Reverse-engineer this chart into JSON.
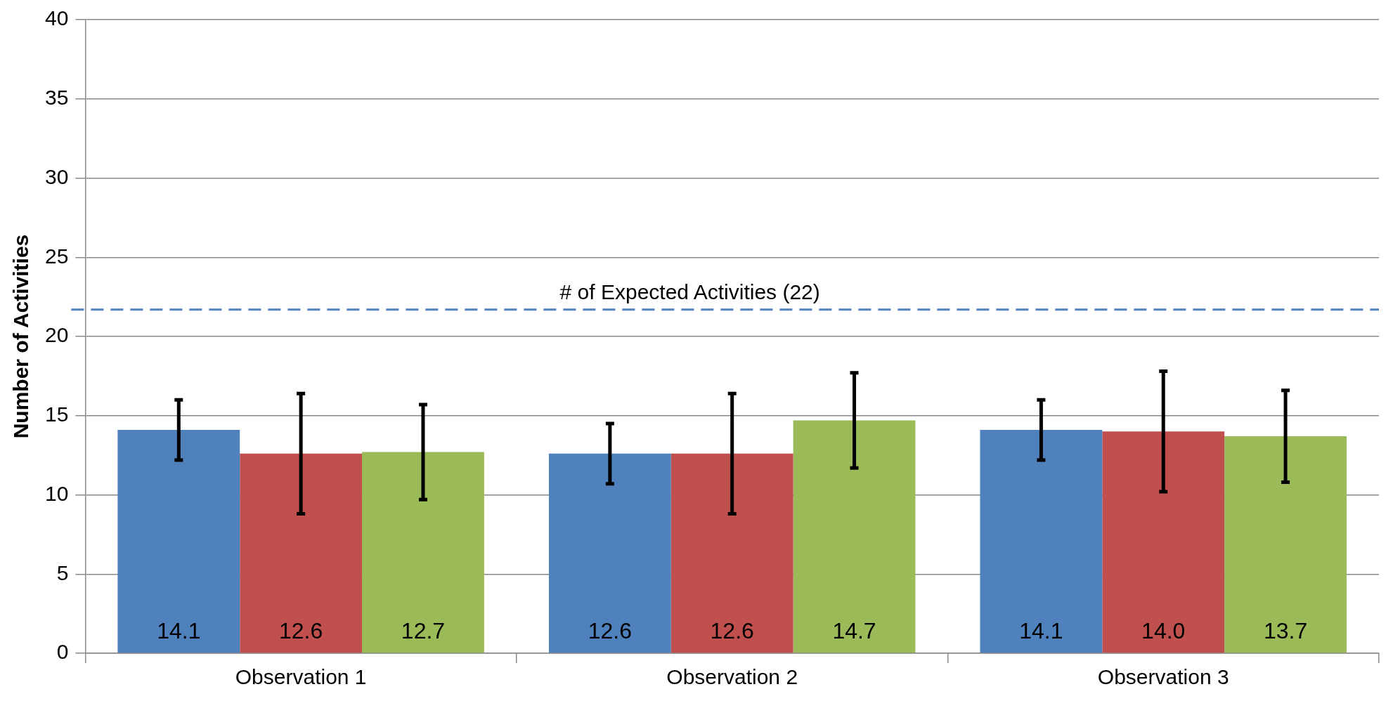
{
  "chart_data": {
    "type": "bar",
    "ylabel": "Number of Activities",
    "categories": [
      "Observation 1",
      "Observation 2",
      "Observation 3"
    ],
    "series": [
      {
        "color": "#4f81bd",
        "values": [
          14.1,
          12.6,
          14.1
        ],
        "errors": [
          1.9,
          1.9,
          1.9
        ],
        "value_labels": [
          "14.1",
          "12.6",
          "14.1"
        ]
      },
      {
        "color": "#c0504d",
        "values": [
          12.6,
          12.6,
          14.0
        ],
        "errors": [
          3.8,
          3.8,
          3.8
        ],
        "value_labels": [
          "12.6",
          "12.6",
          "14.0"
        ]
      },
      {
        "color": "#9bbb59",
        "values": [
          12.7,
          14.7,
          13.7
        ],
        "errors": [
          3.0,
          3.0,
          2.9
        ],
        "value_labels": [
          "12.7",
          "14.7",
          "13.7"
        ]
      }
    ],
    "ylim": [
      0,
      40
    ],
    "yticks": [
      0,
      5,
      10,
      15,
      20,
      25,
      30,
      35,
      40
    ],
    "grid": "y",
    "legend": false,
    "ref_lines": [
      {
        "axis": "y",
        "value": 21.7,
        "label": "# of Expected Activities (22)",
        "color": "#4f81bd",
        "line_style": "dashed"
      }
    ]
  }
}
